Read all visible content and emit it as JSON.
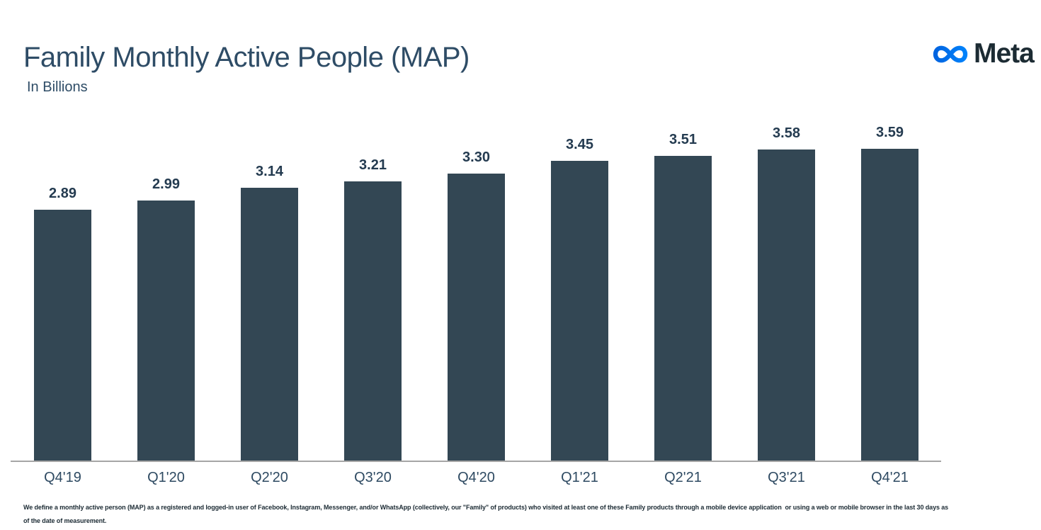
{
  "header": {
    "title": "Family Monthly Active People (MAP)",
    "subtitle": "In Billions",
    "title_color": "#2E4C66"
  },
  "logo": {
    "text": "Meta",
    "infinity_icon": "meta-infinity-icon",
    "gradient_start": "#0064E0",
    "gradient_end": "#0082FB",
    "text_color": "#1C2B33"
  },
  "chart_data": {
    "type": "bar",
    "title": "Family Monthly Active People (MAP)",
    "subtitle": "In Billions",
    "unit": "billions of people",
    "categories": [
      "Q4'19",
      "Q1'20",
      "Q2'20",
      "Q3'20",
      "Q4'20",
      "Q1'21",
      "Q2'21",
      "Q3'21",
      "Q4'21"
    ],
    "values": [
      2.89,
      2.99,
      3.14,
      3.21,
      3.3,
      3.45,
      3.51,
      3.58,
      3.59
    ],
    "value_labels": [
      "2.89",
      "2.99",
      "3.14",
      "3.21",
      "3.30",
      "3.45",
      "3.51",
      "3.58",
      "3.59"
    ],
    "ylim": [
      0,
      3.59
    ],
    "gridlines": false,
    "data_labels_shown": true,
    "legend": "none",
    "bar_color": "#334754",
    "value_label_color": "#243B50",
    "category_label_color": "#2E4A62",
    "axis_line_color": "#A6A6A6"
  },
  "footnote": {
    "line1": "We define a monthly active person (MAP) as a registered and logged-in user of Facebook, Instagram, Messenger, and/or WhatsApp (collectively, our \"Family\" of products) who visited at least one of these Family products through a mobile device application  or using a web or mobile browser in the last 30 days as",
    "line2": "of the date of measurement."
  }
}
